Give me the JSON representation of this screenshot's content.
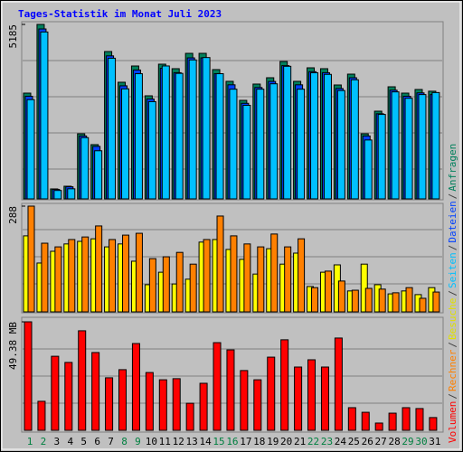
{
  "legend_separator": "/",
  "chart_data": [
    {
      "type": "bar",
      "title": "Tages-Statistik im Monat Juli 2023",
      "ylim": [
        0,
        5185
      ],
      "yticks": [
        5185
      ],
      "series": [
        {
          "name": "Anfragen",
          "color": "#00805c",
          "values": [
            3143,
            5185,
            296,
            376,
            1934,
            1612,
            4379,
            3466,
            3949,
            3063,
            4003,
            3869,
            4325,
            4325,
            3842,
            3493,
            2928,
            3412,
            3600,
            4083,
            3493,
            3895,
            3869,
            3385,
            3707,
            1934,
            2606,
            3331,
            3143,
            3251,
            3200
          ]
        },
        {
          "name": "Dateien",
          "color": "#0040ff",
          "values": [
            3050,
            5050,
            280,
            360,
            1870,
            1560,
            4250,
            3360,
            3830,
            2970,
            3880,
            3750,
            4190,
            4190,
            3720,
            3390,
            2840,
            3310,
            3490,
            3960,
            3390,
            3780,
            3750,
            3280,
            3600,
            1870,
            2530,
            3230,
            3050,
            3150,
            3100
          ]
        },
        {
          "name": "Seiten",
          "color": "#00c0ff",
          "values": [
            2950,
            4960,
            250,
            300,
            1820,
            1430,
            4180,
            3270,
            3720,
            2890,
            3950,
            3730,
            4130,
            4200,
            3720,
            3260,
            2780,
            3260,
            3420,
            3940,
            3260,
            3750,
            3700,
            3220,
            3540,
            1750,
            2510,
            3180,
            2990,
            3100,
            3160
          ]
        }
      ]
    },
    {
      "type": "bar",
      "ylim": [
        0,
        288
      ],
      "yticks": [
        288
      ],
      "series": [
        {
          "name": "Besuche",
          "color": "#ffff00",
          "values": [
            207,
            133,
            165,
            185,
            192,
            199,
            177,
            185,
            138,
            74,
            108,
            76,
            89,
            190,
            197,
            170,
            143,
            103,
            172,
            130,
            160,
            69,
            108,
            128,
            57,
            130,
            74,
            49,
            57,
            47,
            66
          ]
        },
        {
          "name": "Rechner",
          "color": "#ff8000",
          "values": [
            288,
            187,
            177,
            197,
            204,
            234,
            197,
            209,
            214,
            145,
            150,
            162,
            130,
            197,
            261,
            207,
            185,
            177,
            212,
            177,
            199,
            66,
            111,
            84,
            59,
            64,
            62,
            52,
            66,
            37,
            54
          ]
        }
      ]
    },
    {
      "type": "bar",
      "ylim": [
        0,
        49.38
      ],
      "yticks": [
        {
          "value": 49.38,
          "label": "49.38 MB"
        }
      ],
      "categories": [
        "1",
        "2",
        "3",
        "4",
        "5",
        "6",
        "7",
        "8",
        "9",
        "10",
        "11",
        "12",
        "13",
        "14",
        "15",
        "16",
        "17",
        "18",
        "19",
        "20",
        "21",
        "22",
        "23",
        "24",
        "25",
        "26",
        "27",
        "28",
        "29",
        "30",
        "31"
      ],
      "category_colors": [
        "#008040",
        "#008040",
        "#000000",
        "#000000",
        "#000000",
        "#000000",
        "#000000",
        "#008040",
        "#008040",
        "#000000",
        "#000000",
        "#000000",
        "#000000",
        "#000000",
        "#008040",
        "#008040",
        "#000000",
        "#000000",
        "#000000",
        "#000000",
        "#000000",
        "#008040",
        "#008040",
        "#000000",
        "#000000",
        "#000000",
        "#000000",
        "#000000",
        "#008040",
        "#008040",
        "#000000"
      ],
      "series": [
        {
          "name": "Volumen",
          "color": "#ff0000",
          "values": [
            49.38,
            13.2,
            33.7,
            30.9,
            45.3,
            35.4,
            23.9,
            27.6,
            39.5,
            26.3,
            23.0,
            23.5,
            12.3,
            21.4,
            39.9,
            36.6,
            27.2,
            23.0,
            33.3,
            41.2,
            28.8,
            32.1,
            28.8,
            42.0,
            10.3,
            8.2,
            3.3,
            7.8,
            10.3,
            9.9,
            5.8
          ]
        }
      ]
    }
  ]
}
